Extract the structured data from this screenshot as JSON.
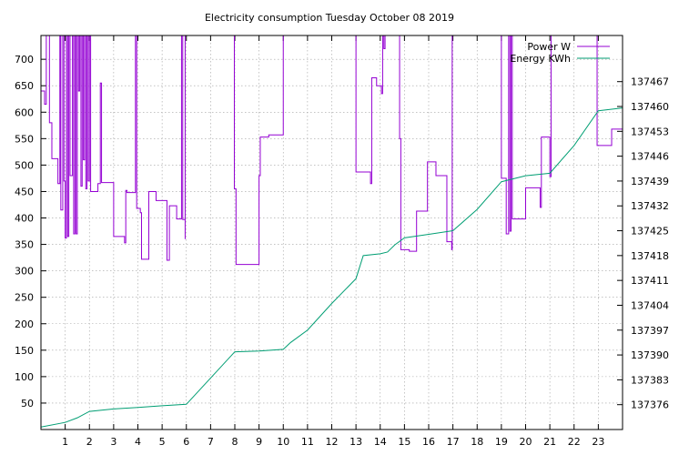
{
  "chart_data": {
    "type": "line",
    "title": "Electricity consumption Tuesday October 08 2019",
    "xlabel": "",
    "ylabel": "",
    "y2label": "",
    "grid": true,
    "legend_position": "top-right",
    "xlim": [
      0,
      24
    ],
    "ylim": [
      0,
      745
    ],
    "y2lim": [
      137369,
      137480
    ],
    "x_ticks": [
      1,
      2,
      3,
      4,
      5,
      6,
      7,
      8,
      9,
      10,
      11,
      12,
      13,
      14,
      15,
      16,
      17,
      18,
      19,
      20,
      21,
      22,
      23
    ],
    "y_ticks": [
      50,
      100,
      150,
      200,
      250,
      300,
      350,
      400,
      450,
      500,
      550,
      600,
      650,
      700
    ],
    "y2_ticks": [
      137376,
      137383,
      137390,
      137397,
      137404,
      137411,
      137418,
      137425,
      137432,
      137439,
      137446,
      137453,
      137460,
      137467
    ],
    "series": [
      {
        "name": "Power W",
        "axis": "y1",
        "color": "#9400d3",
        "points": [
          [
            0.0,
            640
          ],
          [
            0.15,
            640
          ],
          [
            0.15,
            615
          ],
          [
            0.22,
            615
          ],
          [
            0.22,
            745
          ],
          [
            0.35,
            745
          ],
          [
            0.35,
            580
          ],
          [
            0.45,
            580
          ],
          [
            0.45,
            512
          ],
          [
            0.7,
            512
          ],
          [
            0.7,
            465
          ],
          [
            0.78,
            465
          ],
          [
            0.78,
            745
          ],
          [
            0.82,
            745
          ],
          [
            0.82,
            415
          ],
          [
            0.9,
            415
          ],
          [
            0.9,
            745
          ],
          [
            0.95,
            745
          ],
          [
            0.95,
            470
          ],
          [
            1.0,
            470
          ],
          [
            1.0,
            362
          ],
          [
            1.05,
            362
          ],
          [
            1.05,
            745
          ],
          [
            1.1,
            745
          ],
          [
            1.1,
            365
          ],
          [
            1.15,
            365
          ],
          [
            1.15,
            745
          ],
          [
            1.2,
            745
          ],
          [
            1.2,
            480
          ],
          [
            1.3,
            480
          ],
          [
            1.3,
            745
          ],
          [
            1.35,
            745
          ],
          [
            1.35,
            370
          ],
          [
            1.4,
            370
          ],
          [
            1.4,
            745
          ],
          [
            1.45,
            745
          ],
          [
            1.45,
            370
          ],
          [
            1.5,
            370
          ],
          [
            1.5,
            745
          ],
          [
            1.55,
            745
          ],
          [
            1.55,
            640
          ],
          [
            1.6,
            640
          ],
          [
            1.6,
            745
          ],
          [
            1.65,
            745
          ],
          [
            1.65,
            460
          ],
          [
            1.7,
            460
          ],
          [
            1.7,
            745
          ],
          [
            1.75,
            745
          ],
          [
            1.75,
            510
          ],
          [
            1.8,
            510
          ],
          [
            1.8,
            745
          ],
          [
            1.85,
            745
          ],
          [
            1.85,
            455
          ],
          [
            1.9,
            455
          ],
          [
            1.9,
            745
          ],
          [
            1.95,
            745
          ],
          [
            1.95,
            470
          ],
          [
            2.0,
            470
          ],
          [
            2.0,
            745
          ],
          [
            2.05,
            745
          ],
          [
            2.05,
            450
          ],
          [
            2.35,
            450
          ],
          [
            2.35,
            465
          ],
          [
            2.45,
            465
          ],
          [
            2.45,
            655
          ],
          [
            2.5,
            655
          ],
          [
            2.5,
            467
          ],
          [
            3.0,
            467
          ],
          [
            3.0,
            365
          ],
          [
            3.45,
            365
          ],
          [
            3.45,
            353
          ],
          [
            3.5,
            353
          ],
          [
            3.5,
            452
          ],
          [
            3.55,
            452
          ],
          [
            3.55,
            448
          ],
          [
            3.9,
            448
          ],
          [
            3.9,
            745
          ],
          [
            3.95,
            745
          ],
          [
            3.95,
            418
          ],
          [
            4.1,
            418
          ],
          [
            4.1,
            410
          ],
          [
            4.15,
            410
          ],
          [
            4.15,
            322
          ],
          [
            4.45,
            322
          ],
          [
            4.45,
            450
          ],
          [
            4.75,
            450
          ],
          [
            4.75,
            433
          ],
          [
            5.2,
            433
          ],
          [
            5.2,
            320
          ],
          [
            5.3,
            320
          ],
          [
            5.3,
            325
          ],
          [
            5.3,
            423
          ],
          [
            5.6,
            423
          ],
          [
            5.6,
            398
          ],
          [
            5.8,
            398
          ],
          [
            5.8,
            745
          ],
          [
            5.85,
            745
          ],
          [
            5.85,
            397
          ],
          [
            5.95,
            397
          ],
          [
            5.95,
            360
          ],
          [
            5.95,
            745
          ],
          [
            7.98,
            745
          ],
          [
            7.98,
            455
          ],
          [
            8.05,
            455
          ],
          [
            8.05,
            312
          ],
          [
            8.5,
            312
          ],
          [
            8.5,
            312
          ],
          [
            9.0,
            312
          ],
          [
            9.0,
            480
          ],
          [
            9.05,
            480
          ],
          [
            9.05,
            553
          ],
          [
            9.4,
            553
          ],
          [
            9.4,
            557
          ],
          [
            10.0,
            557
          ],
          [
            10.0,
            745
          ],
          [
            13.0,
            745
          ],
          [
            13.0,
            487
          ],
          [
            13.6,
            487
          ],
          [
            13.6,
            465
          ],
          [
            13.65,
            465
          ],
          [
            13.65,
            665
          ],
          [
            13.85,
            665
          ],
          [
            13.85,
            650
          ],
          [
            14.05,
            650
          ],
          [
            14.05,
            635
          ],
          [
            14.1,
            635
          ],
          [
            14.1,
            745
          ],
          [
            14.15,
            745
          ],
          [
            14.15,
            720
          ],
          [
            14.2,
            720
          ],
          [
            14.2,
            745
          ],
          [
            14.8,
            745
          ],
          [
            14.8,
            550
          ],
          [
            14.85,
            550
          ],
          [
            14.85,
            340
          ],
          [
            15.2,
            340
          ],
          [
            15.2,
            337
          ],
          [
            15.5,
            337
          ],
          [
            15.5,
            413
          ],
          [
            15.95,
            413
          ],
          [
            15.95,
            506
          ],
          [
            16.3,
            506
          ],
          [
            16.3,
            480
          ],
          [
            16.75,
            480
          ],
          [
            16.75,
            355
          ],
          [
            16.95,
            355
          ],
          [
            16.95,
            340
          ],
          [
            16.97,
            340
          ],
          [
            16.97,
            745
          ],
          [
            19.0,
            745
          ],
          [
            19.0,
            475
          ],
          [
            19.2,
            475
          ],
          [
            19.2,
            370
          ],
          [
            19.3,
            370
          ],
          [
            19.3,
            745
          ],
          [
            19.35,
            745
          ],
          [
            19.35,
            375
          ],
          [
            19.4,
            375
          ],
          [
            19.4,
            745
          ],
          [
            19.45,
            745
          ],
          [
            19.45,
            398
          ],
          [
            20.0,
            398
          ],
          [
            20.0,
            457
          ],
          [
            20.6,
            457
          ],
          [
            20.6,
            420
          ],
          [
            20.65,
            420
          ],
          [
            20.65,
            553
          ],
          [
            21.0,
            553
          ],
          [
            21.0,
            478
          ],
          [
            21.05,
            478
          ],
          [
            21.05,
            745
          ],
          [
            22.95,
            745
          ],
          [
            22.95,
            537
          ],
          [
            23.55,
            537
          ],
          [
            23.55,
            568
          ],
          [
            24.0,
            568
          ]
        ]
      },
      {
        "name": "Energy KWh",
        "axis": "y2",
        "color": "#009e73",
        "points": [
          [
            0.0,
            137369.7
          ],
          [
            1.0,
            137371.0
          ],
          [
            1.5,
            137372.3
          ],
          [
            2.0,
            137374.1
          ],
          [
            3.0,
            137374.8
          ],
          [
            4.0,
            137375.2
          ],
          [
            5.0,
            137375.7
          ],
          [
            6.0,
            137376.1
          ],
          [
            7.0,
            137383.5
          ],
          [
            8.0,
            137390.9
          ],
          [
            9.0,
            137391.1
          ],
          [
            10.0,
            137391.6
          ],
          [
            10.3,
            137393.5
          ],
          [
            11.0,
            137397.0
          ],
          [
            12.0,
            137404.5
          ],
          [
            13.0,
            137411.5
          ],
          [
            13.3,
            137418.0
          ],
          [
            14.0,
            137418.5
          ],
          [
            14.3,
            137419.0
          ],
          [
            14.6,
            137421.0
          ],
          [
            15.0,
            137423.0
          ],
          [
            16.0,
            137424.0
          ],
          [
            17.0,
            137425.0
          ],
          [
            18.0,
            137431.0
          ],
          [
            19.0,
            137438.8
          ],
          [
            20.0,
            137440.5
          ],
          [
            21.0,
            137441.2
          ],
          [
            22.0,
            137449.0
          ],
          [
            23.0,
            137458.8
          ],
          [
            24.0,
            137459.6
          ]
        ]
      }
    ]
  }
}
